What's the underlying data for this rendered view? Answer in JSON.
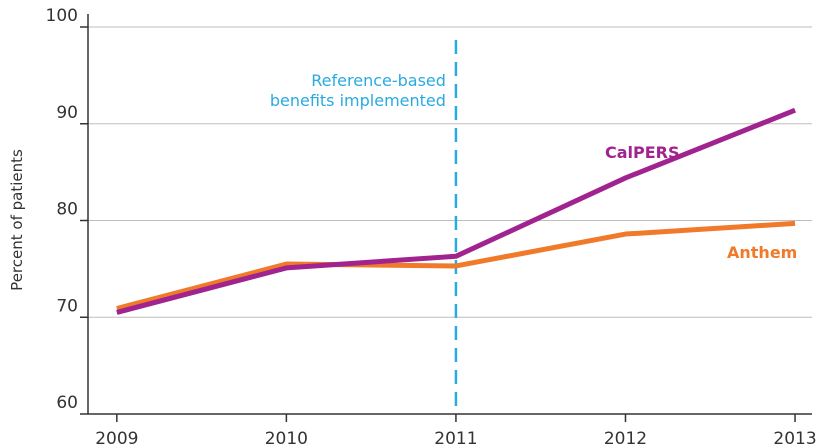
{
  "chart_data": {
    "type": "line",
    "ylabel": "Percent of patients",
    "x": [
      2009,
      2010,
      2011,
      2012,
      2013
    ],
    "xlim": [
      2008.83,
      2013.1
    ],
    "xticks": [
      2009,
      2010,
      2011,
      2012,
      2013
    ],
    "ylim": [
      60,
      100
    ],
    "yticks": [
      60,
      70,
      80,
      90,
      100
    ],
    "grid": true,
    "series": [
      {
        "name": "CalPERS",
        "color": "#a0238f",
        "values": [
          70.5,
          75.1,
          76.3,
          84.4,
          91.4
        ]
      },
      {
        "name": "Anthem",
        "color": "#f07a2a",
        "values": [
          70.9,
          75.5,
          75.3,
          78.6,
          79.7
        ]
      }
    ],
    "annotation": {
      "x": 2011,
      "lines": [
        "Reference-based",
        "benefits implemented"
      ],
      "color": "#29aae1"
    }
  }
}
